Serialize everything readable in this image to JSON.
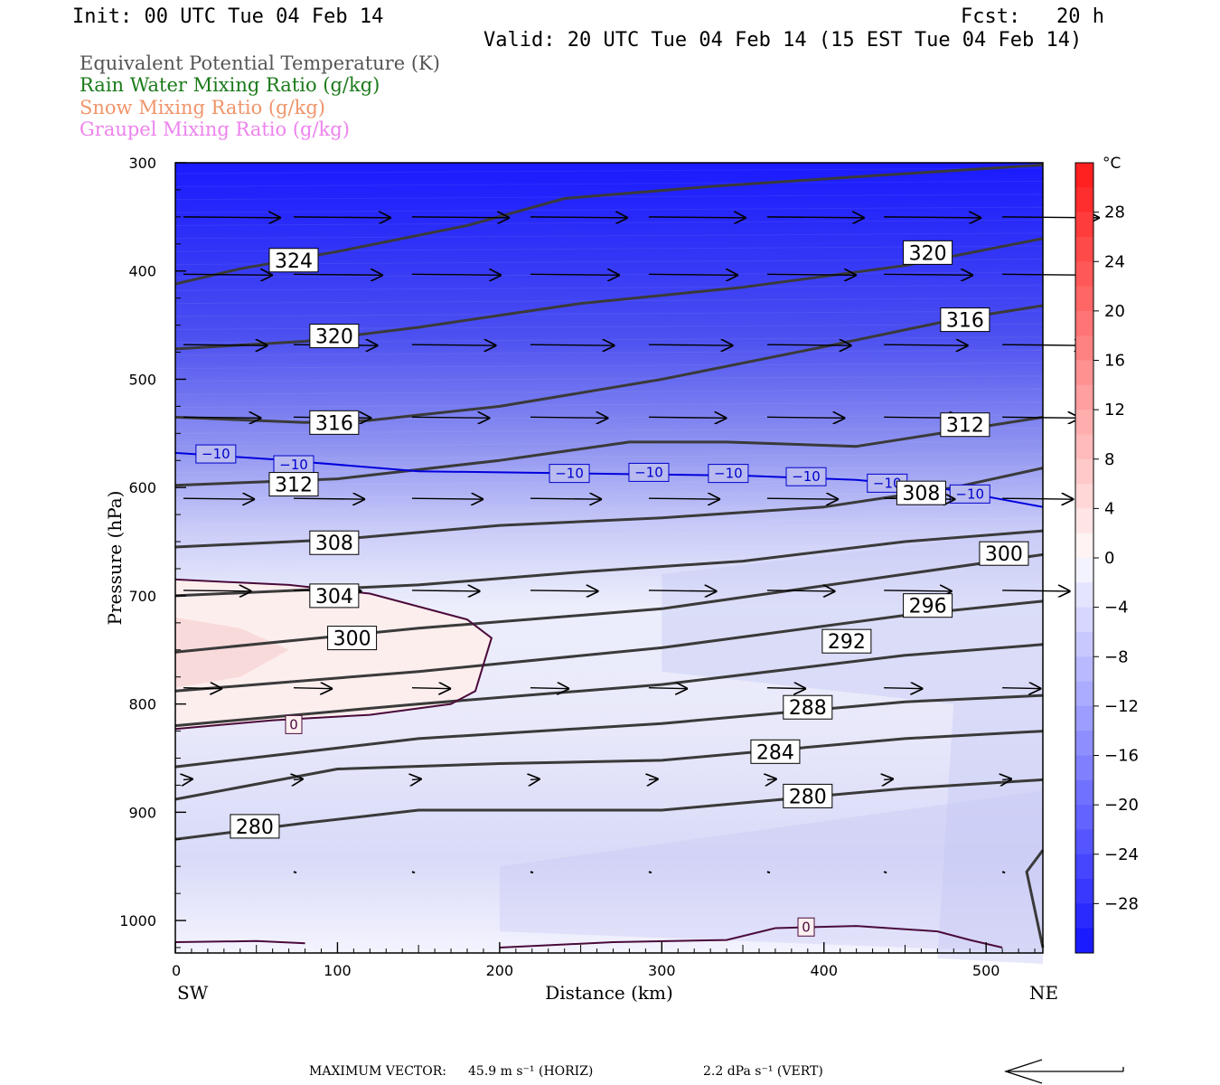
{
  "header": {
    "init": "Init: 00 UTC Tue 04 Feb 14",
    "fcst": "Fcst:   20 h",
    "valid": "Valid: 20 UTC Tue 04 Feb 14 (15 EST Tue 04 Feb 14)"
  },
  "legend": [
    {
      "label": "Equivalent Potential Temperature (K)",
      "color": "#555555"
    },
    {
      "label": "Rain Water Mixing Ratio (g/kg)",
      "color": "#1a7a1a"
    },
    {
      "label": "Snow Mixing Ratio (g/kg)",
      "color": "#f0946a"
    },
    {
      "label": "Graupel Mixing Ratio (g/kg)",
      "color": "#ee82ee"
    }
  ],
  "chart_data": {
    "type": "contour_cross_section",
    "xlabel": "Distance (km)",
    "ylabel": "Pressure (hPa)",
    "xlim": [
      0,
      535
    ],
    "ylim": [
      1030,
      300
    ],
    "x_ticks": [
      "0",
      "100",
      "200",
      "300",
      "400",
      "500"
    ],
    "y_ticks": [
      "300",
      "400",
      "500",
      "600",
      "700",
      "800",
      "900",
      "1000"
    ],
    "left_endpoint": "SW",
    "right_endpoint": "NE",
    "colorbar": {
      "unit": "°C",
      "labels": [
        "28",
        "24",
        "20",
        "16",
        "12",
        "8",
        "4",
        "0",
        "−4",
        "−8",
        "−12",
        "−16",
        "−20",
        "−24",
        "−28"
      ],
      "range": [
        -32,
        32
      ]
    },
    "theta_e_contours": [
      {
        "value": "324",
        "pts": [
          [
            0,
            412
          ],
          [
            40,
            398
          ],
          [
            100,
            382
          ],
          [
            180,
            358
          ],
          [
            240,
            333
          ],
          [
            330,
            322
          ],
          [
            430,
            312
          ],
          [
            535,
            302
          ]
        ]
      },
      {
        "value": "320",
        "pts": [
          [
            0,
            472
          ],
          [
            80,
            465
          ],
          [
            150,
            452
          ],
          [
            250,
            430
          ],
          [
            350,
            415
          ],
          [
            450,
            395
          ],
          [
            535,
            370
          ]
        ]
      },
      {
        "value": "316",
        "pts": [
          [
            0,
            535
          ],
          [
            80,
            540
          ],
          [
            120,
            538
          ],
          [
            200,
            525
          ],
          [
            300,
            500
          ],
          [
            400,
            470
          ],
          [
            480,
            445
          ],
          [
            535,
            432
          ]
        ]
      },
      {
        "value": "312",
        "pts": [
          [
            0,
            598
          ],
          [
            100,
            592
          ],
          [
            200,
            575
          ],
          [
            280,
            558
          ],
          [
            340,
            558
          ],
          [
            420,
            562
          ],
          [
            480,
            548
          ],
          [
            535,
            535
          ]
        ]
      },
      {
        "value": "308",
        "pts": [
          [
            0,
            655
          ],
          [
            100,
            648
          ],
          [
            200,
            635
          ],
          [
            300,
            628
          ],
          [
            400,
            618
          ],
          [
            480,
            600
          ],
          [
            535,
            582
          ]
        ]
      },
      {
        "value": "304",
        "pts": [
          [
            0,
            700
          ],
          [
            150,
            690
          ],
          [
            250,
            678
          ],
          [
            350,
            668
          ],
          [
            450,
            650
          ],
          [
            535,
            640
          ]
        ]
      },
      {
        "value": "300",
        "pts": [
          [
            0,
            752
          ],
          [
            150,
            730
          ],
          [
            300,
            712
          ],
          [
            450,
            680
          ],
          [
            535,
            662
          ]
        ]
      },
      {
        "value": "296",
        "pts": [
          [
            0,
            788
          ],
          [
            150,
            770
          ],
          [
            300,
            748
          ],
          [
            450,
            718
          ],
          [
            535,
            705
          ]
        ]
      },
      {
        "value": "292",
        "pts": [
          [
            0,
            820
          ],
          [
            150,
            800
          ],
          [
            300,
            782
          ],
          [
            450,
            755
          ],
          [
            535,
            745
          ]
        ]
      },
      {
        "value": "288",
        "pts": [
          [
            0,
            858
          ],
          [
            150,
            832
          ],
          [
            300,
            818
          ],
          [
            450,
            798
          ],
          [
            535,
            792
          ]
        ]
      },
      {
        "value": "284",
        "pts": [
          [
            0,
            888
          ],
          [
            100,
            860
          ],
          [
            200,
            855
          ],
          [
            300,
            852
          ],
          [
            450,
            832
          ],
          [
            535,
            825
          ]
        ]
      },
      {
        "value": "280",
        "pts": [
          [
            0,
            925
          ],
          [
            80,
            910
          ],
          [
            150,
            898
          ],
          [
            300,
            898
          ],
          [
            450,
            878
          ],
          [
            535,
            870
          ]
        ]
      }
    ],
    "theta_e_label_positions": [
      {
        "value": "324",
        "x": 73,
        "p": 390
      },
      {
        "value": "320",
        "x": 464,
        "p": 383
      },
      {
        "value": "320",
        "x": 98,
        "p": 460
      },
      {
        "value": "316",
        "x": 487,
        "p": 445
      },
      {
        "value": "316",
        "x": 98,
        "p": 540
      },
      {
        "value": "312",
        "x": 487,
        "p": 542
      },
      {
        "value": "312",
        "x": 73,
        "p": 597
      },
      {
        "value": "308",
        "x": 460,
        "p": 605
      },
      {
        "value": "308",
        "x": 98,
        "p": 651
      },
      {
        "value": "300",
        "x": 511,
        "p": 661
      },
      {
        "value": "304",
        "x": 98,
        "p": 700
      },
      {
        "value": "296",
        "x": 464,
        "p": 709
      },
      {
        "value": "300",
        "x": 109,
        "p": 739
      },
      {
        "value": "292",
        "x": 414,
        "p": 742
      },
      {
        "value": "288",
        "x": 390,
        "p": 803
      },
      {
        "value": "284",
        "x": 370,
        "p": 844
      },
      {
        "value": "280",
        "x": 390,
        "p": 885
      },
      {
        "value": "280",
        "x": 49,
        "p": 913
      }
    ],
    "temp_contour_minus10": {
      "value": "−10",
      "pts": [
        [
          0,
          568
        ],
        [
          60,
          574
        ],
        [
          150,
          585
        ],
        [
          250,
          587
        ],
        [
          350,
          589
        ],
        [
          420,
          593
        ],
        [
          470,
          600
        ],
        [
          535,
          618
        ]
      ],
      "labels": [
        [
          25,
          569
        ],
        [
          73,
          579
        ],
        [
          243,
          587
        ],
        [
          292,
          586
        ],
        [
          341,
          587
        ],
        [
          389,
          590
        ],
        [
          439,
          596
        ],
        [
          490,
          606
        ]
      ]
    },
    "temp_contour_zero": {
      "value": "0",
      "upper": [
        [
          0,
          685
        ],
        [
          70,
          690
        ],
        [
          120,
          698
        ],
        [
          180,
          722
        ],
        [
          195,
          739
        ],
        [
          185,
          788
        ],
        [
          170,
          800
        ],
        [
          120,
          810
        ],
        [
          60,
          815
        ],
        [
          0,
          823
        ]
      ],
      "upper_label": [
        73,
        819
      ],
      "lower": [
        [
          0,
          1020
        ],
        [
          50,
          1019
        ],
        [
          80,
          1021
        ]
      ],
      "lower2": [
        [
          200,
          1025
        ],
        [
          270,
          1020
        ],
        [
          340,
          1018
        ],
        [
          370,
          1007
        ],
        [
          420,
          1005
        ],
        [
          470,
          1010
        ],
        [
          490,
          1018
        ],
        [
          510,
          1025
        ]
      ],
      "lower_label": [
        389,
        1006
      ]
    },
    "wind_arrow_rows": [
      {
        "p": 350,
        "xs": [
          5,
          73,
          146,
          219,
          292,
          365,
          437,
          510
        ],
        "len": 60
      },
      {
        "p": 403,
        "xs": [
          5,
          73,
          146,
          219,
          292,
          365,
          437,
          510
        ],
        "len": 55
      },
      {
        "p": 468,
        "xs": [
          5,
          73,
          146,
          219,
          292,
          365,
          437,
          510
        ],
        "len": 52
      },
      {
        "p": 535,
        "xs": [
          5,
          73,
          146,
          219,
          292,
          365,
          437,
          510
        ],
        "len": 48
      },
      {
        "p": 610,
        "xs": [
          5,
          73,
          146,
          219,
          292,
          365,
          437,
          510
        ],
        "len": 44
      },
      {
        "p": 695,
        "xs": [
          5,
          73,
          146,
          219,
          292,
          365,
          437,
          510
        ],
        "len": 42
      },
      {
        "p": 785,
        "xs": [
          5,
          73,
          146,
          219,
          292,
          365,
          437,
          510
        ],
        "len": 24
      },
      {
        "p": 870,
        "xs": [
          5,
          73,
          146,
          219,
          292,
          365,
          437,
          510
        ],
        "len": 6
      },
      {
        "p": 955,
        "xs": [
          73,
          146,
          219,
          292,
          365,
          437,
          510
        ],
        "len": 2
      }
    ]
  },
  "footer": {
    "max_vector_label": "MAXIMUM VECTOR:",
    "horiz": "45.9 m s⁻¹ (HORIZ)",
    "vert": "2.2 dPa s⁻¹ (VERT)"
  }
}
